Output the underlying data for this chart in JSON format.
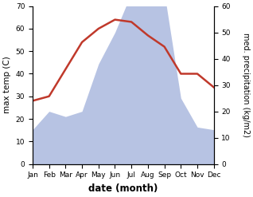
{
  "months": [
    "Jan",
    "Feb",
    "Mar",
    "Apr",
    "May",
    "Jun",
    "Jul",
    "Aug",
    "Sep",
    "Oct",
    "Nov",
    "Dec"
  ],
  "temperature": [
    28,
    30,
    42,
    54,
    60,
    64,
    63,
    57,
    52,
    40,
    40,
    34
  ],
  "precipitation": [
    13,
    20,
    18,
    20,
    38,
    50,
    65,
    65,
    65,
    25,
    14,
    13
  ],
  "temp_color": "#c0392b",
  "precip_color_fill": "#b0bde0",
  "left_ylabel": "max temp (C)",
  "right_ylabel": "med. precipitation (kg/m2)",
  "xlabel": "date (month)",
  "ylim_left": [
    0,
    70
  ],
  "ylim_right": [
    0,
    60
  ],
  "yticks_left": [
    0,
    10,
    20,
    30,
    40,
    50,
    60,
    70
  ],
  "yticks_right": [
    0,
    10,
    20,
    30,
    40,
    50,
    60
  ]
}
